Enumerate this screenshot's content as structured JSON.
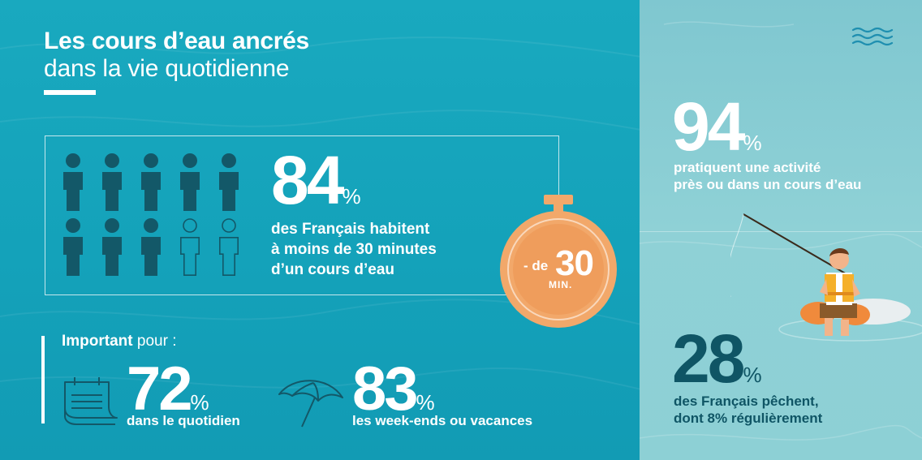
{
  "title": {
    "line1": "Les cours d’eau ancrés",
    "line2": "dans la vie quotidienne"
  },
  "stat_84": {
    "value": "84",
    "unit": "%",
    "line1": "des Français habitent",
    "line2": "à moins de 30 minutes",
    "line3": "d’un cours d’eau",
    "people_filled": 8,
    "people_total": 10
  },
  "timer": {
    "prefix": "- de",
    "value": "30",
    "unit": "MIN."
  },
  "important": {
    "bold": "Important",
    "rest": " pour :"
  },
  "stat_72": {
    "value": "72",
    "unit": "%",
    "label": "dans le quotidien"
  },
  "stat_83": {
    "value": "83",
    "unit": "%",
    "label": "les week-ends ou vacances"
  },
  "stat_94": {
    "value": "94",
    "unit": "%",
    "line1": "pratiquent une activité",
    "line2": "près ou dans un cours d’eau"
  },
  "stat_28": {
    "value": "28",
    "unit": "%",
    "line1": "des Français pêchent,",
    "line2": "dont 8% régulièrement"
  },
  "colors": {
    "main_bg": "#16a4bb",
    "side_bg": "#86cbd3",
    "person_dark": "#135868",
    "accent_orange": "#f2a86a",
    "dark_teal_text": "#0f5565"
  },
  "icons": [
    "people-icon",
    "stopwatch-icon",
    "calendar-icon",
    "beach-umbrella-icon",
    "waves-icon",
    "fisherman-illustration"
  ]
}
